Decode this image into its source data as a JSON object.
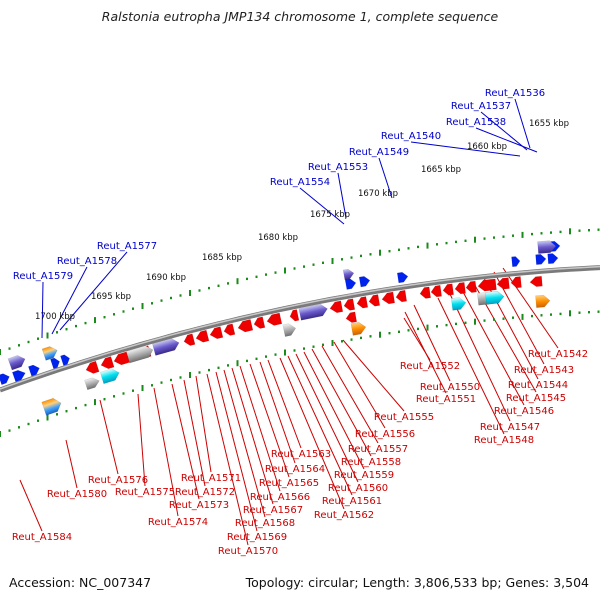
{
  "title": "Ralstonia eutropha JMP134 chromosome 1, complete sequence",
  "footer": {
    "accession": "Accession: NC_007347",
    "summary": "Topology: circular; Length: 3,806,533 bp; Genes: 3,504"
  },
  "colors": {
    "forward_label": "#0000cc",
    "reverse_label": "#cc0000",
    "forward_gene": "#0022ee",
    "reverse_gene": "#ee0000",
    "tick": "#1a8a1a",
    "backbone": "#7a7a7a"
  },
  "scale_labels": [
    "1655 kbp",
    "1660 kbp",
    "1665 kbp",
    "1670 kbp",
    "1675 kbp",
    "1680 kbp",
    "1685 kbp",
    "1690 kbp",
    "1695 kbp",
    "1700 kbp"
  ],
  "forward_genes": [
    "Reut_A1536",
    "Reut_A1537",
    "Reut_A1538",
    "Reut_A1540",
    "Reut_A1549",
    "Reut_A1553",
    "Reut_A1554",
    "Reut_A1577",
    "Reut_A1578",
    "Reut_A1579"
  ],
  "reverse_genes": [
    "Reut_A1542",
    "Reut_A1543",
    "Reut_A1544",
    "Reut_A1545",
    "Reut_A1546",
    "Reut_A1547",
    "Reut_A1548",
    "Reut_A1550",
    "Reut_A1551",
    "Reut_A1552",
    "Reut_A1555",
    "Reut_A1556",
    "Reut_A1557",
    "Reut_A1558",
    "Reut_A1559",
    "Reut_A1560",
    "Reut_A1561",
    "Reut_A1562",
    "Reut_A1563",
    "Reut_A1564",
    "Reut_A1565",
    "Reut_A1566",
    "Reut_A1567",
    "Reut_A1568",
    "Reut_A1569",
    "Reut_A1570",
    "Reut_A1571",
    "Reut_A1572",
    "Reut_A1573",
    "Reut_A1574",
    "Reut_A1575",
    "Reut_A1576",
    "Reut_A1580",
    "Reut_A1584"
  ]
}
